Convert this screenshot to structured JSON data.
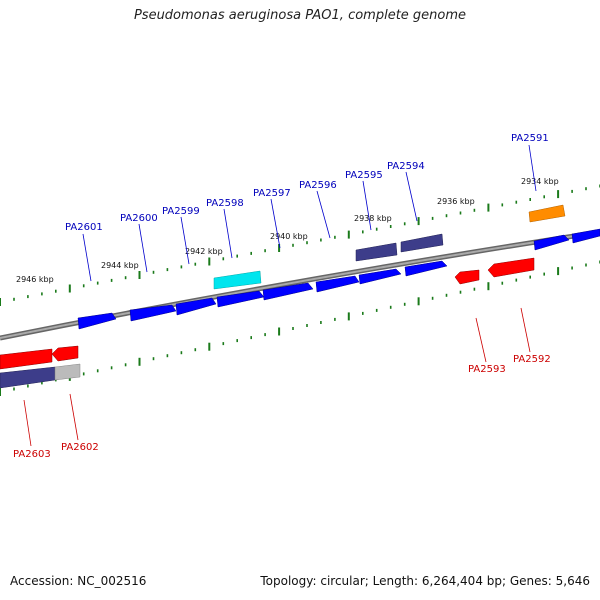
{
  "title": "Pseudomonas aeruginosa PAO1, complete genome",
  "footer": {
    "accession": "Accession: NC_002516",
    "summary": "Topology: circular; Length: 6,264,404 bp; Genes: 5,646"
  },
  "colors": {
    "forward_gene": "#0000ff",
    "reverse_gene": "#ff0000",
    "forward_label": "#0000bb",
    "reverse_label": "#cc0000",
    "dark_gene": "#3d3d8a",
    "highlight_gene": "#00e5ee",
    "orange_gene": "#ff8c00",
    "grey_gene": "#bbbbbb",
    "tick": "#1a7a1a",
    "backbone": "#808080"
  },
  "ticks": [
    {
      "pos": 2946,
      "label": "2946 kbp"
    },
    {
      "pos": 2944,
      "label": "2944 kbp"
    },
    {
      "pos": 2942,
      "label": "2942 kbp"
    },
    {
      "pos": 2940,
      "label": "2940 kbp"
    },
    {
      "pos": 2938,
      "label": "2938 kbp"
    },
    {
      "pos": 2936,
      "label": "2936 kbp"
    },
    {
      "pos": 2934,
      "label": "2934 kbp"
    }
  ],
  "forward_labels": [
    "PA2601",
    "PA2600",
    "PA2599",
    "PA2598",
    "PA2597",
    "PA2596",
    "PA2595",
    "PA2594",
    "PA2591"
  ],
  "reverse_labels": [
    "PA2603",
    "PA2602",
    "PA2593",
    "PA2592"
  ]
}
